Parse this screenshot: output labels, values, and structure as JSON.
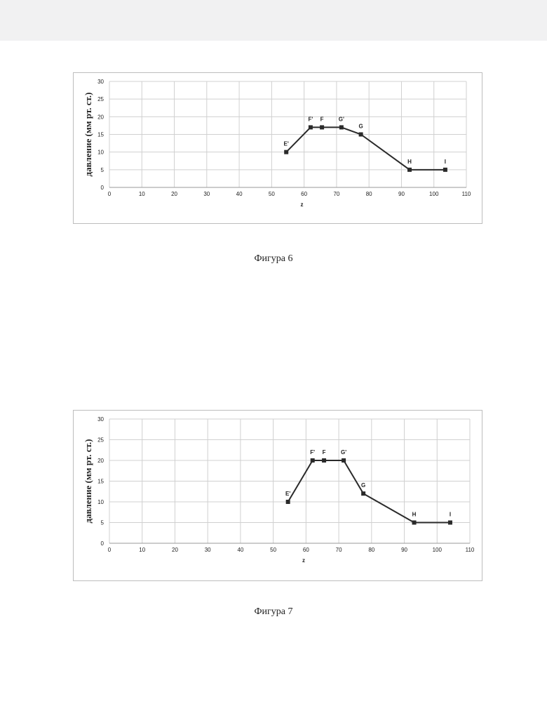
{
  "figures": [
    {
      "caption": "Фигура 6",
      "chart_data": {
        "type": "line",
        "xlabel": "z",
        "ylabel": "давление (мм рт. ст.)",
        "xlim": [
          0,
          110
        ],
        "ylim": [
          0,
          30
        ],
        "xticks": [
          0,
          10,
          20,
          30,
          40,
          50,
          60,
          70,
          80,
          90,
          100,
          110
        ],
        "yticks": [
          0,
          5,
          10,
          15,
          20,
          25,
          30
        ],
        "grid": true,
        "series": [
          {
            "points": [
              {
                "label": "E'",
                "x": 54.5,
                "y": 10
              },
              {
                "label": "F'",
                "x": 62,
                "y": 17
              },
              {
                "label": "F",
                "x": 65.5,
                "y": 17
              },
              {
                "label": "G'",
                "x": 71.5,
                "y": 17
              },
              {
                "label": "G",
                "x": 77.5,
                "y": 15
              },
              {
                "label": "H",
                "x": 92.5,
                "y": 5
              },
              {
                "label": "I",
                "x": 103.5,
                "y": 5
              }
            ]
          }
        ]
      }
    },
    {
      "caption": "Фигура 7",
      "chart_data": {
        "type": "line",
        "xlabel": "z",
        "ylabel": "давление (мм рт. ст.)",
        "xlim": [
          0,
          110
        ],
        "ylim": [
          0,
          30
        ],
        "xticks": [
          0,
          10,
          20,
          30,
          40,
          50,
          60,
          70,
          80,
          90,
          100,
          110
        ],
        "yticks": [
          0,
          5,
          10,
          15,
          20,
          25,
          30
        ],
        "grid": true,
        "series": [
          {
            "points": [
              {
                "label": "E'",
                "x": 54.5,
                "y": 10
              },
              {
                "label": "F'",
                "x": 62,
                "y": 20
              },
              {
                "label": "F",
                "x": 65.5,
                "y": 20
              },
              {
                "label": "G'",
                "x": 71.5,
                "y": 20
              },
              {
                "label": "G",
                "x": 77.5,
                "y": 12
              },
              {
                "label": "H",
                "x": 93,
                "y": 5
              },
              {
                "label": "I",
                "x": 104,
                "y": 5
              }
            ]
          }
        ]
      }
    }
  ]
}
